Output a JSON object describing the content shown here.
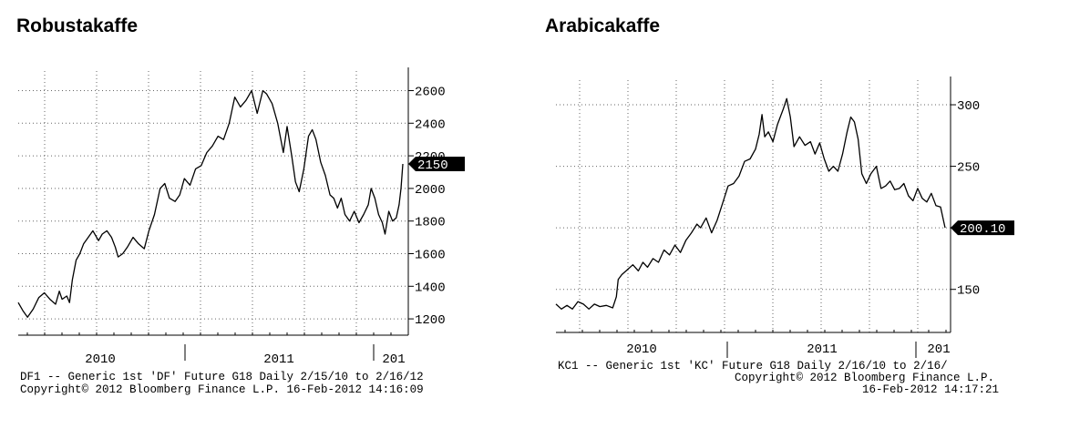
{
  "chart_data": [
    {
      "type": "line",
      "title": "Robustakaffe",
      "x_tick_labels": [
        "2010",
        "2011",
        "201"
      ],
      "y_ticks": [
        1200,
        1400,
        1600,
        1800,
        2000,
        2200,
        2400,
        2600
      ],
      "ylim": [
        1100,
        2720
      ],
      "grid": true,
      "last_value_label": "2150",
      "footer": {
        "line1": "DF1 -- Generic 1st 'DF' Future    G18  Daily  2/15/10 to 2/16/12",
        "line2": "Copyright© 2012 Bloomberg Finance L.P.    16-Feb-2012 14:16:09"
      },
      "series": [
        {
          "values": [
            [
              0,
              1300
            ],
            [
              5,
              1250
            ],
            [
              10,
              1210
            ],
            [
              16,
              1260
            ],
            [
              22,
              1330
            ],
            [
              28,
              1360
            ],
            [
              34,
              1320
            ],
            [
              40,
              1290
            ],
            [
              44,
              1370
            ],
            [
              47,
              1320
            ],
            [
              52,
              1340
            ],
            [
              55,
              1300
            ],
            [
              58,
              1440
            ],
            [
              62,
              1560
            ],
            [
              66,
              1600
            ],
            [
              70,
              1660
            ],
            [
              75,
              1700
            ],
            [
              80,
              1740
            ],
            [
              86,
              1680
            ],
            [
              90,
              1720
            ],
            [
              95,
              1740
            ],
            [
              100,
              1700
            ],
            [
              104,
              1640
            ],
            [
              107,
              1580
            ],
            [
              112,
              1600
            ],
            [
              117,
              1640
            ],
            [
              123,
              1700
            ],
            [
              129,
              1660
            ],
            [
              135,
              1630
            ],
            [
              140,
              1740
            ],
            [
              146,
              1840
            ],
            [
              152,
              2000
            ],
            [
              157,
              2030
            ],
            [
              162,
              1940
            ],
            [
              168,
              1920
            ],
            [
              173,
              1960
            ],
            [
              178,
              2060
            ],
            [
              184,
              2020
            ],
            [
              190,
              2120
            ],
            [
              196,
              2140
            ],
            [
              202,
              2220
            ],
            [
              208,
              2260
            ],
            [
              214,
              2320
            ],
            [
              220,
              2300
            ],
            [
              226,
              2400
            ],
            [
              232,
              2560
            ],
            [
              238,
              2500
            ],
            [
              244,
              2540
            ],
            [
              250,
              2600
            ],
            [
              256,
              2460
            ],
            [
              262,
              2600
            ],
            [
              266,
              2580
            ],
            [
              272,
              2520
            ],
            [
              278,
              2400
            ],
            [
              284,
              2220
            ],
            [
              288,
              2380
            ],
            [
              293,
              2200
            ],
            [
              297,
              2040
            ],
            [
              301,
              1980
            ],
            [
              306,
              2120
            ],
            [
              311,
              2320
            ],
            [
              315,
              2360
            ],
            [
              319,
              2300
            ],
            [
              324,
              2160
            ],
            [
              329,
              2080
            ],
            [
              334,
              1960
            ],
            [
              338,
              1940
            ],
            [
              342,
              1880
            ],
            [
              346,
              1940
            ],
            [
              350,
              1840
            ],
            [
              355,
              1800
            ],
            [
              360,
              1860
            ],
            [
              365,
              1790
            ],
            [
              370,
              1840
            ],
            [
              375,
              1900
            ],
            [
              378,
              2000
            ],
            [
              382,
              1940
            ],
            [
              386,
              1840
            ],
            [
              390,
              1790
            ],
            [
              393,
              1720
            ],
            [
              397,
              1860
            ],
            [
              401,
              1800
            ],
            [
              405,
              1820
            ],
            [
              408,
              1900
            ],
            [
              410,
              2000
            ],
            [
              412,
              2150
            ]
          ]
        }
      ]
    },
    {
      "type": "line",
      "title": "Arabicakaffe",
      "x_tick_labels": [
        "2010",
        "2011",
        "201"
      ],
      "y_ticks": [
        150,
        200,
        250,
        300
      ],
      "ylim": [
        115,
        320
      ],
      "grid": true,
      "last_value_label": "200.10",
      "footer": {
        "line1": "KC1 -- Generic 1st 'KC' Future    G18  Daily  2/16/10 to 2/16/",
        "line2": "Copyright© 2012 Bloomberg Finance L.P.",
        "line3": "16-Feb-2012 14:17:21"
      },
      "series": [
        {
          "values": [
            [
              0,
              138
            ],
            [
              6,
              134
            ],
            [
              12,
              137
            ],
            [
              18,
              134
            ],
            [
              24,
              140
            ],
            [
              30,
              138
            ],
            [
              36,
              134
            ],
            [
              42,
              138
            ],
            [
              48,
              136
            ],
            [
              55,
              137
            ],
            [
              62,
              135
            ],
            [
              66,
              144
            ],
            [
              68,
              158
            ],
            [
              72,
              162
            ],
            [
              78,
              166
            ],
            [
              84,
              170
            ],
            [
              90,
              165
            ],
            [
              95,
              172
            ],
            [
              100,
              168
            ],
            [
              106,
              175
            ],
            [
              112,
              172
            ],
            [
              118,
              182
            ],
            [
              124,
              178
            ],
            [
              130,
              186
            ],
            [
              136,
              180
            ],
            [
              142,
              190
            ],
            [
              148,
              196
            ],
            [
              154,
              203
            ],
            [
              158,
              200
            ],
            [
              164,
              208
            ],
            [
              170,
              196
            ],
            [
              176,
              206
            ],
            [
              182,
              220
            ],
            [
              188,
              234
            ],
            [
              194,
              236
            ],
            [
              200,
              242
            ],
            [
              206,
              254
            ],
            [
              212,
              256
            ],
            [
              218,
              264
            ],
            [
              222,
              276
            ],
            [
              225,
              292
            ],
            [
              228,
              274
            ],
            [
              232,
              278
            ],
            [
              237,
              270
            ],
            [
              242,
              284
            ],
            [
              248,
              296
            ],
            [
              252,
              305
            ],
            [
              256,
              290
            ],
            [
              260,
              266
            ],
            [
              266,
              274
            ],
            [
              272,
              267
            ],
            [
              278,
              270
            ],
            [
              283,
              260
            ],
            [
              288,
              269
            ],
            [
              293,
              256
            ],
            [
              298,
              246
            ],
            [
              303,
              250
            ],
            [
              308,
              246
            ],
            [
              313,
              260
            ],
            [
              318,
              278
            ],
            [
              322,
              290
            ],
            [
              326,
              286
            ],
            [
              330,
              272
            ],
            [
              334,
              244
            ],
            [
              339,
              236
            ],
            [
              344,
              244
            ],
            [
              350,
              250
            ],
            [
              355,
              232
            ],
            [
              360,
              234
            ],
            [
              365,
              238
            ],
            [
              370,
              231
            ],
            [
              375,
              232
            ],
            [
              380,
              236
            ],
            [
              385,
              226
            ],
            [
              390,
              222
            ],
            [
              395,
              232
            ],
            [
              400,
              224
            ],
            [
              405,
              221
            ],
            [
              410,
              228
            ],
            [
              415,
              218
            ],
            [
              420,
              217
            ],
            [
              425,
              200
            ]
          ]
        }
      ]
    }
  ]
}
